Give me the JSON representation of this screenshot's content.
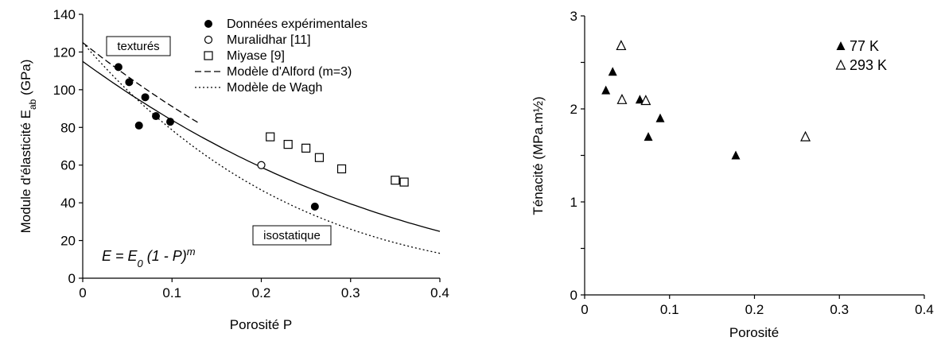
{
  "chart_data": [
    {
      "type": "scatter",
      "title": "",
      "xlabel": "Porosité P",
      "ylabel_main": "Module d'élasticité E",
      "ylabel_sub": "ab",
      "ylabel_unit": " (GPa)",
      "xlim": [
        0,
        0.4
      ],
      "ylim": [
        0,
        140
      ],
      "xticks": [
        0,
        0.1,
        0.2,
        0.3,
        0.4
      ],
      "xtick_labels": [
        "0",
        "0.1",
        "0.2",
        "0.3",
        "0.4"
      ],
      "yticks": [
        0,
        20,
        40,
        60,
        80,
        100,
        120,
        140
      ],
      "ytick_labels": [
        "0",
        "20",
        "40",
        "60",
        "80",
        "100",
        "120",
        "140"
      ],
      "grid": false,
      "legend_position": "top-right",
      "series": [
        {
          "name": "Données expérimentales",
          "marker": "filled-circle",
          "x": [
            0.04,
            0.052,
            0.063,
            0.07,
            0.082,
            0.098,
            0.26
          ],
          "y": [
            112,
            104,
            81,
            96,
            86,
            83,
            38
          ]
        },
        {
          "name": "Muralidhar [11]",
          "marker": "open-circle",
          "x": [
            0.2
          ],
          "y": [
            60
          ]
        },
        {
          "name": "Miyase [9]",
          "marker": "open-square",
          "x": [
            0.21,
            0.23,
            0.25,
            0.265,
            0.29,
            0.35,
            0.36
          ],
          "y": [
            75,
            71,
            69,
            64,
            58,
            52,
            51
          ]
        }
      ],
      "curves": [
        {
          "name": "Modèle d'Alford (m=3)",
          "style": "dashed",
          "E0": 125,
          "m": 3,
          "x0": 0.0,
          "x1": 0.13
        },
        {
          "name": "Modèle de Wagh",
          "style": "dotted",
          "E0": 125,
          "m": 4.4,
          "x0": 0.0,
          "x1": 0.4
        },
        {
          "name": "",
          "style": "solid",
          "E0": 115,
          "m": 3,
          "x0": 0.0,
          "x1": 0.4
        }
      ],
      "annotations": {
        "textures": "texturés",
        "isostatique": "isostatique",
        "formula_lhs": "E = E",
        "formula_sub": "0",
        "formula_mid": " (1 - P)",
        "formula_sup": "m"
      }
    },
    {
      "type": "scatter",
      "title": "",
      "xlabel": "Porosité",
      "ylabel": "Ténacité (MPa.m½)",
      "xlim": [
        0,
        0.4
      ],
      "ylim": [
        0,
        3
      ],
      "xticks": [
        0,
        0.1,
        0.2,
        0.3,
        0.4
      ],
      "xtick_labels": [
        "0",
        "0.1",
        "0.2",
        "0.3",
        "0.4"
      ],
      "yticks": [
        0,
        1,
        2,
        3
      ],
      "ytick_labels": [
        "0",
        "1",
        "2",
        "3"
      ],
      "grid": false,
      "legend_position": "top-right",
      "series": [
        {
          "name": "77 K",
          "marker": "filled-triangle",
          "x": [
            0.025,
            0.033,
            0.065,
            0.075,
            0.089,
            0.178
          ],
          "y": [
            2.2,
            2.4,
            2.1,
            1.7,
            1.9,
            1.5
          ]
        },
        {
          "name": "293 K",
          "marker": "open-triangle",
          "x": [
            0.043,
            0.044,
            0.072,
            0.26
          ],
          "y": [
            2.68,
            2.1,
            2.09,
            1.7
          ]
        }
      ]
    }
  ]
}
